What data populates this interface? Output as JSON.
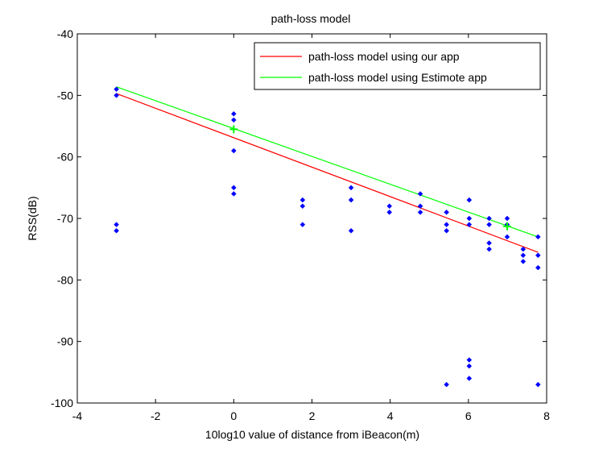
{
  "chart_data": {
    "type": "scatter",
    "title": "path-loss model",
    "xlabel": "10log10 value of distance from iBeacon(m)",
    "ylabel": "RSS(dB)",
    "xlim": [
      -4,
      8
    ],
    "ylim": [
      -100,
      -40
    ],
    "xticks": [
      -4,
      -2,
      0,
      2,
      4,
      6,
      8
    ],
    "yticks": [
      -100,
      -90,
      -80,
      -70,
      -60,
      -50,
      -40
    ],
    "grid": false,
    "legend_position": "top-right",
    "colors": {
      "points": "#0000ff",
      "our_app": "#ff0000",
      "estimote_app": "#00ff00"
    },
    "points": [
      [
        -3,
        -49
      ],
      [
        -3,
        -50
      ],
      [
        -3,
        -71
      ],
      [
        -3,
        -72
      ],
      [
        0,
        -53
      ],
      [
        0,
        -54
      ],
      [
        0,
        -59
      ],
      [
        0,
        -65
      ],
      [
        0,
        -66
      ],
      [
        1.76,
        -67
      ],
      [
        1.76,
        -68
      ],
      [
        1.76,
        -71
      ],
      [
        3,
        -65
      ],
      [
        3,
        -67
      ],
      [
        3,
        -72
      ],
      [
        3.98,
        -68
      ],
      [
        3.98,
        -69
      ],
      [
        4.77,
        -66
      ],
      [
        4.77,
        -68
      ],
      [
        4.77,
        -69
      ],
      [
        5.44,
        -69
      ],
      [
        5.44,
        -71
      ],
      [
        5.44,
        -72
      ],
      [
        5.44,
        -97
      ],
      [
        6.02,
        -67
      ],
      [
        6.02,
        -70
      ],
      [
        6.02,
        -71
      ],
      [
        6.02,
        -93
      ],
      [
        6.02,
        -94
      ],
      [
        6.02,
        -96
      ],
      [
        6.53,
        -70
      ],
      [
        6.53,
        -71
      ],
      [
        6.53,
        -74
      ],
      [
        6.53,
        -75
      ],
      [
        6.99,
        -70
      ],
      [
        6.99,
        -71
      ],
      [
        6.99,
        -73
      ],
      [
        7.4,
        -75
      ],
      [
        7.4,
        -76
      ],
      [
        7.4,
        -77
      ],
      [
        7.78,
        -73
      ],
      [
        7.78,
        -76
      ],
      [
        7.78,
        -78
      ],
      [
        7.78,
        -97
      ]
    ],
    "series": [
      {
        "name": "path-loss model using our app",
        "x": [
          -3,
          7.78
        ],
        "y": [
          -49.7,
          -75.5
        ]
      },
      {
        "name": "path-loss model using Estimote app",
        "x": [
          -3,
          7.78
        ],
        "y": [
          -48.6,
          -73
        ]
      }
    ],
    "markers": [
      {
        "series": "path-loss model using Estimote app",
        "x": 0,
        "y": -55.5
      },
      {
        "series": "path-loss model using Estimote app",
        "x": 6.99,
        "y": -71.3
      }
    ]
  }
}
